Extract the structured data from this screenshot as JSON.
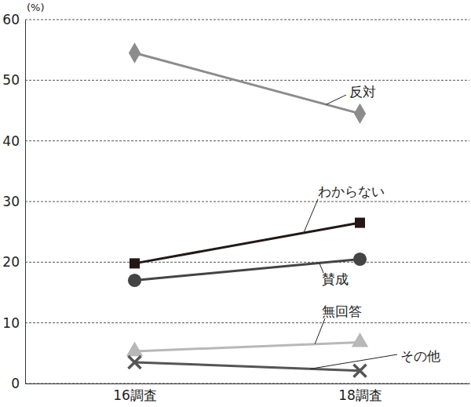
{
  "chart_data": {
    "type": "line",
    "y_label": "(%)",
    "categories": [
      "16調査",
      "18調査"
    ],
    "series": [
      {
        "name": "反対",
        "color": "#8c8c8c",
        "marker": "diamond",
        "values": [
          54.5,
          44.5
        ]
      },
      {
        "name": "わからない",
        "color": "#231815",
        "marker": "square",
        "values": [
          19.8,
          26.5
        ]
      },
      {
        "name": "賛成",
        "color": "#444444",
        "marker": "circle",
        "values": [
          17,
          20.5
        ]
      },
      {
        "name": "無回答",
        "color": "#b8b8b8",
        "marker": "triangle",
        "values": [
          5.3,
          6.8
        ]
      },
      {
        "name": "その他",
        "color": "#555555",
        "marker": "x",
        "values": [
          3.5,
          2.1
        ]
      }
    ],
    "ylim": [
      0,
      60
    ],
    "yticks": [
      0,
      10,
      20,
      30,
      40,
      50,
      60
    ],
    "grid": true
  }
}
